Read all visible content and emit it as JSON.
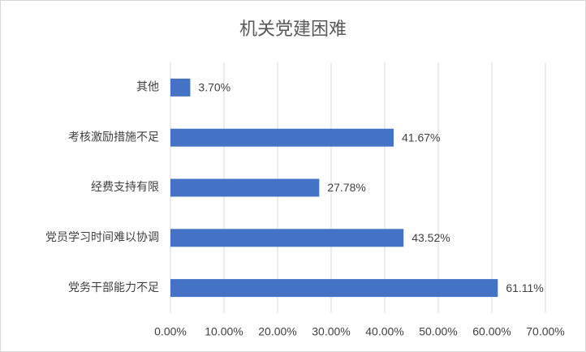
{
  "chart_data": {
    "type": "bar",
    "orientation": "horizontal",
    "title": "机关党建困难",
    "categories": [
      "其他",
      "考核激励措施不足",
      "经费支持有限",
      "党员学习时间难以协调",
      "党务干部能力不足"
    ],
    "values": [
      3.7,
      41.67,
      27.78,
      43.52,
      61.11
    ],
    "value_labels": [
      "3.70%",
      "41.67%",
      "27.78%",
      "43.52%",
      "61.11%"
    ],
    "color": "#4472c4",
    "xlim": [
      0,
      70
    ],
    "xticks": [
      {
        "value": 0,
        "label": "0.00%"
      },
      {
        "value": 10,
        "label": "10.00%"
      },
      {
        "value": 20,
        "label": "20.00%"
      },
      {
        "value": 30,
        "label": "30.00%"
      },
      {
        "value": 40,
        "label": "40.00%"
      },
      {
        "value": 50,
        "label": "50.00%"
      },
      {
        "value": 60,
        "label": "60.00%"
      },
      {
        "value": 70,
        "label": "70.00%"
      }
    ],
    "grid": true
  }
}
